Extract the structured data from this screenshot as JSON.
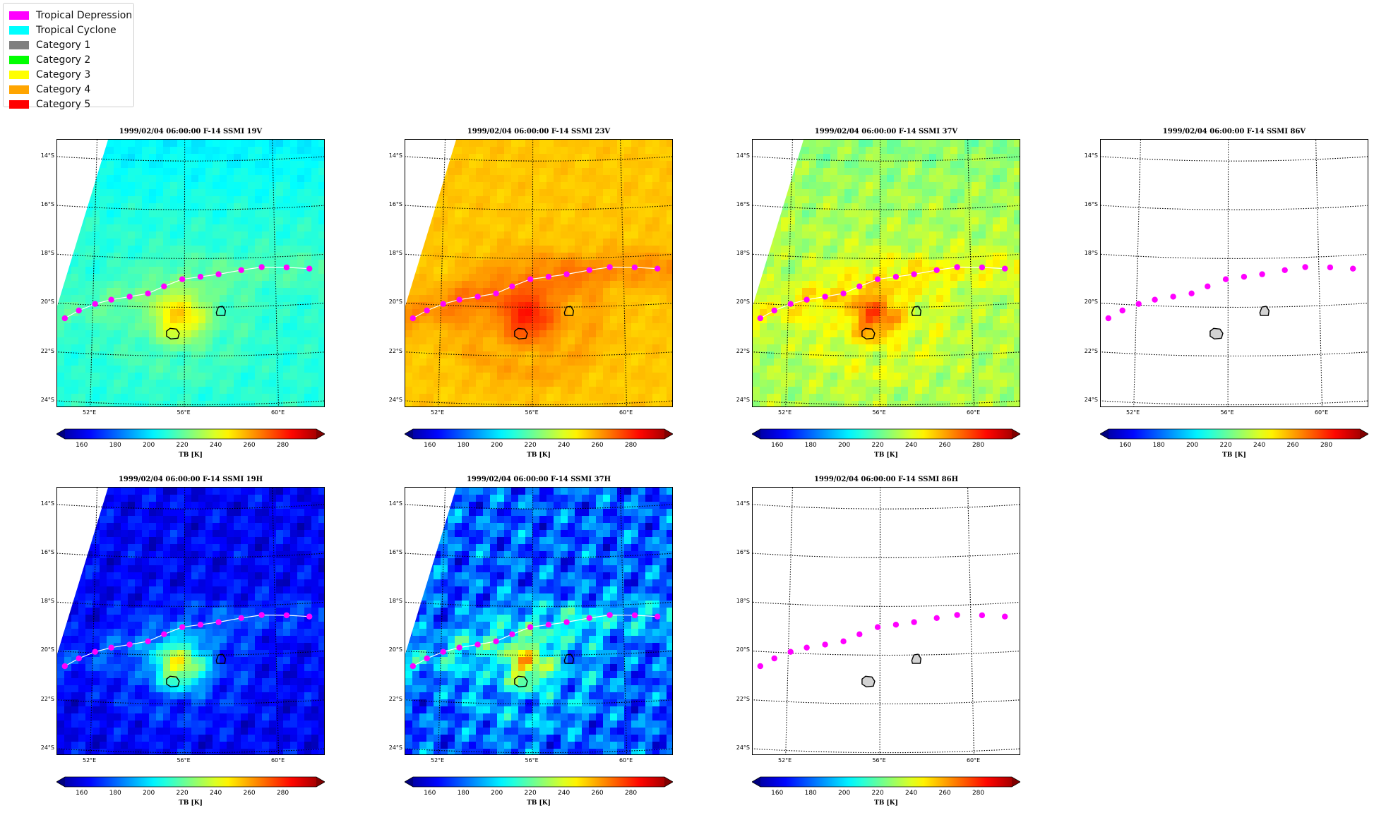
{
  "legend": {
    "items": [
      {
        "label": "Tropical Depression",
        "color": "#ff00ff"
      },
      {
        "label": "Tropical Cyclone",
        "color": "#00ffff"
      },
      {
        "label": "Category 1",
        "color": "#808080"
      },
      {
        "label": "Category 2",
        "color": "#00ff00"
      },
      {
        "label": "Category 3",
        "color": "#ffff00"
      },
      {
        "label": "Category 4",
        "color": "#ffa500"
      },
      {
        "label": "Category 5",
        "color": "#ff0000"
      }
    ]
  },
  "map": {
    "lat_labels": [
      "14°S",
      "16°S",
      "18°S",
      "20°S",
      "22°S",
      "24°S"
    ],
    "lon_labels": [
      "52°E",
      "56°E",
      "60°E"
    ],
    "colorbar": {
      "label": "TB [K]",
      "ticks": [
        "160",
        "180",
        "200",
        "220",
        "240",
        "260",
        "280"
      ],
      "min": 150,
      "max": 300
    },
    "track_color": "#ff00ff",
    "track_points": [
      {
        "lon": 50.8,
        "lat": -20.6
      },
      {
        "lon": 51.4,
        "lat": -20.25
      },
      {
        "lon": 52.1,
        "lat": -19.95
      },
      {
        "lon": 52.8,
        "lat": -19.75
      },
      {
        "lon": 53.6,
        "lat": -19.6
      },
      {
        "lon": 54.4,
        "lat": -19.45
      },
      {
        "lon": 55.1,
        "lat": -19.15
      },
      {
        "lon": 55.9,
        "lat": -18.85
      },
      {
        "lon": 56.7,
        "lat": -18.75
      },
      {
        "lon": 57.5,
        "lat": -18.65
      },
      {
        "lon": 58.5,
        "lat": -18.5
      },
      {
        "lon": 59.4,
        "lat": -18.4
      },
      {
        "lon": 60.5,
        "lat": -18.45
      },
      {
        "lon": 61.5,
        "lat": -18.55
      }
    ],
    "islands": [
      {
        "name": "mauritius",
        "center_lon": 57.6,
        "center_lat": -20.2
      },
      {
        "name": "reunion",
        "center_lon": 55.5,
        "center_lat": -21.1
      }
    ]
  },
  "panels": [
    {
      "id": "19v",
      "title": "1999/02/04 06:00:00  F-14 SSMI 19V",
      "has_data": true
    },
    {
      "id": "23v",
      "title": "1999/02/04 06:00:00  F-14 SSMI 23V",
      "has_data": true
    },
    {
      "id": "37v",
      "title": "1999/02/04 06:00:00  F-14 SSMI 37V",
      "has_data": true
    },
    {
      "id": "86v",
      "title": "1999/02/04 06:00:00  F-14 SSMI 86V",
      "has_data": false
    },
    {
      "id": "19h",
      "title": "1999/02/04 06:00:00  F-14 SSMI 19H",
      "has_data": true
    },
    {
      "id": "37h",
      "title": "1999/02/04 06:00:00  F-14 SSMI 37H",
      "has_data": true
    },
    {
      "id": "86h",
      "title": "1999/02/04 06:00:00  F-14 SSMI 86H",
      "has_data": false
    }
  ]
}
